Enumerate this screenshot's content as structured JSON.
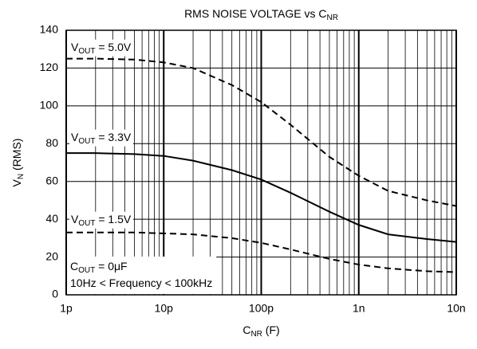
{
  "chart_data": {
    "type": "line",
    "title": {
      "text": "RMS NOISE VOLTAGE vs C",
      "subscript": "NR"
    },
    "x_label": {
      "text": "C",
      "subscript": "NR",
      "rest": " (F)"
    },
    "y_label": {
      "text": "V",
      "subscript": "N",
      "rest": " (RMS)"
    },
    "x_scale": "log",
    "x": [
      1e-12,
      2e-12,
      5e-12,
      1e-11,
      2e-11,
      5e-11,
      1e-10,
      2e-10,
      5e-10,
      1e-09,
      2e-09,
      5e-09,
      1e-08
    ],
    "series": [
      {
        "name_parts": [
          "V",
          "OUT",
          " = 5.0V"
        ],
        "color": "#000000",
        "dash": "dashed",
        "values": [
          125,
          125,
          124.5,
          123,
          120,
          111,
          102,
          90,
          73,
          63,
          55,
          50,
          47
        ]
      },
      {
        "name_parts": [
          "V",
          "OUT",
          " = 3.3V"
        ],
        "color": "#000000",
        "dash": "solid",
        "values": [
          75,
          75,
          74.5,
          73.5,
          71,
          66,
          61,
          54,
          44,
          37,
          32,
          29.5,
          28
        ]
      },
      {
        "name_parts": [
          "V",
          "OUT",
          " = 1.5V"
        ],
        "color": "#000000",
        "dash": "dashed",
        "values": [
          33,
          33,
          33,
          32.5,
          32,
          30,
          27.5,
          24,
          19,
          16,
          14,
          12.5,
          12
        ]
      }
    ],
    "annotations": [
      {
        "parts": [
          "C",
          "OUT",
          " = 0μF"
        ]
      },
      {
        "parts": [
          "10Hz < Frequency < 100kHz"
        ]
      }
    ],
    "xlim": [
      1e-12,
      1e-08
    ],
    "xticks": [
      {
        "value": 1e-12,
        "label": "1p"
      },
      {
        "value": 1e-11,
        "label": "10p"
      },
      {
        "value": 1e-10,
        "label": "100p"
      },
      {
        "value": 1e-09,
        "label": "1n"
      },
      {
        "value": 1e-08,
        "label": "10n"
      }
    ],
    "ylim": [
      0,
      140
    ],
    "yticks": [
      0,
      20,
      40,
      60,
      80,
      100,
      120,
      140
    ],
    "grid": true,
    "minor_grid": true
  }
}
